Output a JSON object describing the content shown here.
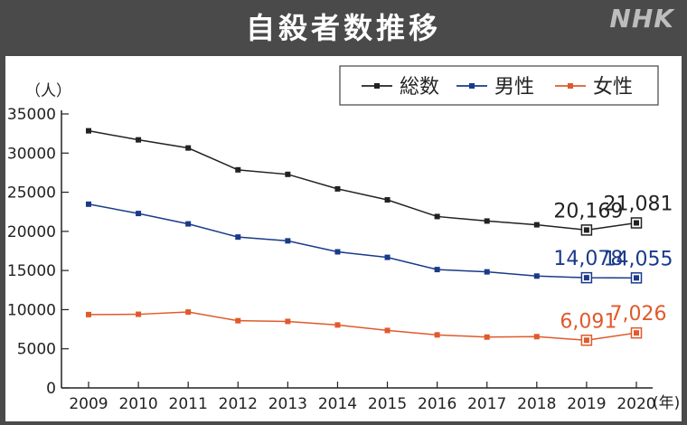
{
  "header": {
    "title": "自殺者数推移",
    "logo": "NHK",
    "bg_color": "#4a4a4a"
  },
  "chart_data": {
    "type": "line",
    "title": "自殺者数推移",
    "y_unit": "（人）",
    "x_unit": "(年)",
    "x": [
      2009,
      2010,
      2011,
      2012,
      2013,
      2014,
      2015,
      2016,
      2017,
      2018,
      2019,
      2020
    ],
    "ylim": [
      0,
      35000
    ],
    "yticks": [
      0,
      5000,
      10000,
      15000,
      20000,
      25000,
      30000,
      35000
    ],
    "grid": false,
    "legend_position": "top-right",
    "series": [
      {
        "name": "総数",
        "color": "#222222",
        "values": [
          32845,
          31690,
          30651,
          27858,
          27283,
          25427,
          24025,
          21897,
          21321,
          20840,
          20169,
          21081
        ]
      },
      {
        "name": "男性",
        "color": "#1a3a8a",
        "values": [
          23472,
          22283,
          20955,
          19273,
          18787,
          17386,
          16681,
          15121,
          14826,
          14290,
          14078,
          14055
        ]
      },
      {
        "name": "女性",
        "color": "#e05a2b",
        "values": [
          9373,
          9407,
          9696,
          8585,
          8496,
          8041,
          7344,
          6776,
          6495,
          6550,
          6091,
          7026
        ]
      }
    ],
    "annotations": [
      {
        "series": 0,
        "index": 10,
        "text": "20,169"
      },
      {
        "series": 0,
        "index": 11,
        "text": "21,081"
      },
      {
        "series": 1,
        "index": 10,
        "text": "14,078"
      },
      {
        "series": 1,
        "index": 11,
        "text": "14,055"
      },
      {
        "series": 2,
        "index": 10,
        "text": "6,091"
      },
      {
        "series": 2,
        "index": 11,
        "text": "7,026"
      }
    ]
  }
}
